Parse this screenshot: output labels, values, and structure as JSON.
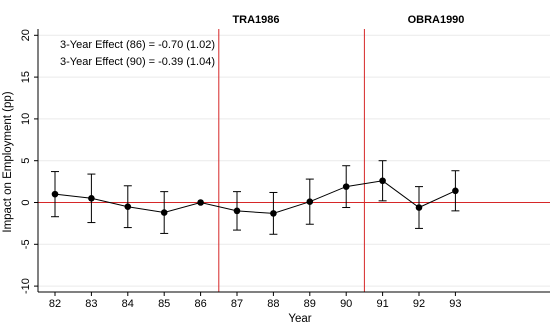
{
  "chart_data": {
    "type": "scatter",
    "xlabel": "Year",
    "ylabel": "Impact on Employment (pp)",
    "xlim": [
      82,
      93
    ],
    "ylim": [
      -10,
      20
    ],
    "x_ticks": [
      "82",
      "83",
      "84",
      "85",
      "86",
      "87",
      "88",
      "89",
      "90",
      "91",
      "92",
      "93"
    ],
    "y_ticks": [
      "20",
      "15",
      "10",
      "5",
      "0",
      "-5",
      "-10"
    ],
    "grid": true,
    "colors": {
      "points": "#000000",
      "reference_lines": "#d62728",
      "grid": "#eaeaea"
    },
    "series": [
      {
        "x": [
          82,
          83,
          84,
          85,
          86,
          87,
          88,
          89,
          90,
          91,
          92,
          93
        ],
        "y": [
          1.0,
          0.5,
          -0.5,
          -1.2,
          0.0,
          -1.0,
          -1.3,
          0.1,
          1.9,
          2.6,
          -0.6,
          1.4
        ],
        "ci_low": [
          -1.7,
          -2.4,
          -3.0,
          -3.7,
          0.0,
          -3.3,
          -3.8,
          -2.6,
          -0.6,
          0.2,
          -3.1,
          -1.0
        ],
        "ci_high": [
          3.7,
          3.4,
          2.0,
          1.3,
          0.0,
          1.3,
          1.2,
          2.8,
          4.4,
          5.0,
          1.9,
          3.8
        ]
      }
    ],
    "reference_lines": [
      {
        "axis": "x",
        "value": 86.5,
        "label": "TRA1986"
      },
      {
        "axis": "x",
        "value": 90.5,
        "label": "OBRA1990"
      },
      {
        "axis": "y",
        "value": 0
      }
    ],
    "annotations": [
      "3-Year Effect (86) = -0.70 (1.02)",
      "3-Year Effect (90) = -0.39 (1.04)"
    ]
  }
}
